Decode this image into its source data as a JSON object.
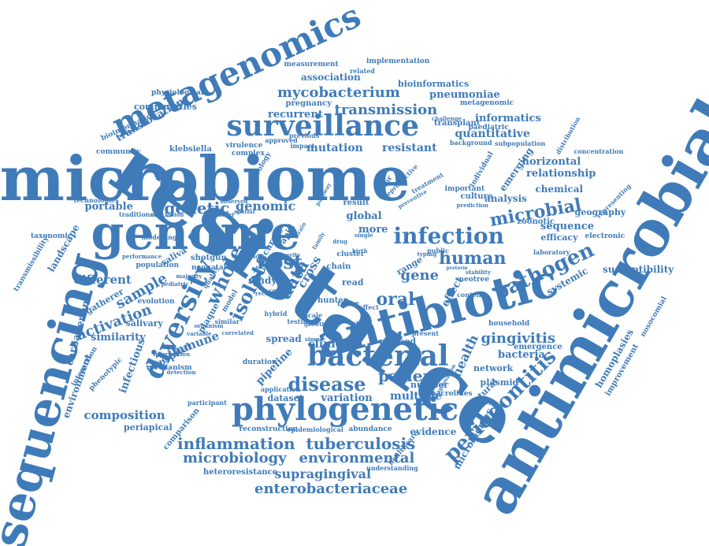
{
  "colors": {
    "word": "#3f7bb8",
    "background": "#ffffff"
  },
  "words": [
    "resistance",
    "antimicrobial",
    "microbiome",
    "sequencing",
    "antibiotic",
    "genome",
    "metagenomics",
    "surveillance",
    "phylogenetic",
    "bacterial",
    "diversity",
    "infection",
    "periodontitis",
    "pathogen",
    "disease",
    "microbial",
    "human",
    "whole",
    "isolate",
    "patient",
    "transmission",
    "mycobacterium",
    "genetic",
    "genomic",
    "host",
    "data",
    "oral",
    "gene",
    "health",
    "gingivitis",
    "bacteria",
    "inflammation",
    "tuberculosis",
    "microbiology",
    "environmental",
    "enterobacteriaceae",
    "supragingival",
    "composition",
    "activation",
    "similarity",
    "immune",
    "clinical",
    "multiple",
    "variation",
    "method",
    "evidence",
    "quantitative",
    "informatics",
    "relationship",
    "sequence",
    "analysis",
    "emerging",
    "horizontal",
    "chemical",
    "mutation",
    "resistant",
    "recurrent",
    "pneumoniae",
    "translocation",
    "association",
    "bioinformatics",
    "metagenomic",
    "sample",
    "different",
    "carbapenem",
    "environment",
    "infectious",
    "periapical",
    "pipeline",
    "susceptibility",
    "network",
    "plasmid",
    "structural",
    "microbiomes",
    "global",
    "more",
    "effect",
    "geography",
    "zoonotic",
    "efficacy",
    "homoplasies",
    "improvement",
    "nosocomial",
    "systemic",
    "dataset",
    "emergence",
    "household",
    "hospital",
    "saliva",
    "salivary",
    "infective",
    "plaque",
    "portable",
    "shotgun",
    "landscape",
    "cross",
    "cluster",
    "chain",
    "rapid",
    "study",
    "child",
    "accuracy",
    "spread",
    "hybrid",
    "evolution",
    "gatherer",
    "hunter",
    "range",
    "read",
    "taxonomic",
    "transmissibility",
    "community",
    "communities",
    "physiological",
    "measurement",
    "implementation",
    "bioinformatic",
    "klebsiella",
    "virulence",
    "complex",
    "ecology",
    "approved",
    "pregnancy",
    "transplant",
    "paediatric",
    "background",
    "subpopulation",
    "concentration",
    "distribution",
    "individual",
    "important",
    "culture",
    "representing",
    "electronic",
    "laboratory",
    "neotree",
    "stability",
    "content",
    "macrolides",
    "interaction",
    "phenotypic",
    "mechanism",
    "participant",
    "reconstruction",
    "abundance",
    "understanding",
    "heteroresistance",
    "healthcare",
    "number",
    "explanation",
    "epidemiological",
    "comparison",
    "duration",
    "application",
    "technologies",
    "modelling",
    "performance",
    "population",
    "neonatal",
    "majority",
    "conclusion",
    "transfer",
    "traditional",
    "treatment",
    "reproductive",
    "factor",
    "result",
    "public",
    "typing",
    "testing",
    "scale",
    "growth",
    "simple",
    "present",
    "affect",
    "reuse",
    "preterm",
    "model",
    "quality",
    "information",
    "pediatric",
    "record",
    "version",
    "cavity",
    "birth",
    "drug",
    "single",
    "family",
    "strain",
    "related",
    "previous",
    "impact",
    "challenge",
    "prediction",
    "detection",
    "organism",
    "similar",
    "variable",
    "infants",
    "observed",
    "spatial",
    "context",
    "correlated",
    "pathway",
    "preventive"
  ]
}
